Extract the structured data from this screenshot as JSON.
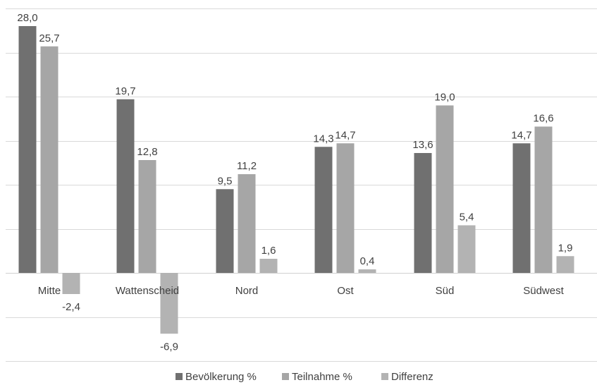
{
  "chart_data": {
    "type": "bar",
    "categories": [
      "Mitte",
      "Wattenscheid",
      "Nord",
      "Ost",
      "Süd",
      "Südwest"
    ],
    "series": [
      {
        "name": "Bevölkerung %",
        "values": [
          28.0,
          19.7,
          9.5,
          14.3,
          13.6,
          14.7
        ],
        "color": "#707070"
      },
      {
        "name": "Teilnahme %",
        "values": [
          25.7,
          12.8,
          11.2,
          14.7,
          19.0,
          16.6
        ],
        "color": "#a6a6a6"
      },
      {
        "name": "Differenz",
        "values": [
          -2.4,
          -6.9,
          1.6,
          0.4,
          5.4,
          1.9
        ],
        "color": "#b3b3b3"
      }
    ],
    "value_labels": [
      [
        "28,0",
        "19,7",
        "9,5",
        "14,3",
        "13,6",
        "14,7"
      ],
      [
        "25,7",
        "12,8",
        "11,2",
        "14,7",
        "19,0",
        "16,6"
      ],
      [
        "-2,4",
        "-6,9",
        "1,6",
        "0,4",
        "5,4",
        "1,9"
      ]
    ],
    "title": "",
    "xlabel": "",
    "ylabel": "",
    "ylim": [
      -10,
      30
    ],
    "y_gridlines": [
      -10,
      -5,
      0,
      5,
      10,
      15,
      20,
      25,
      30
    ],
    "grid": true,
    "legend_position": "bottom"
  }
}
